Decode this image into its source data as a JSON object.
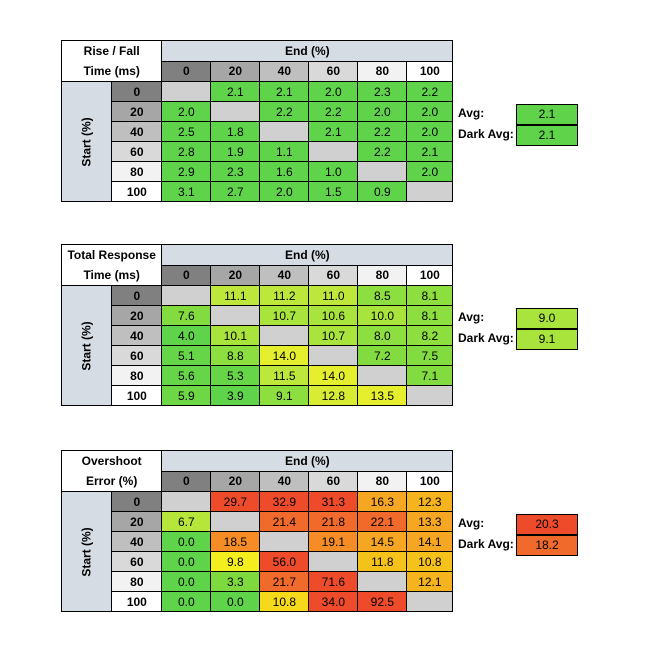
{
  "tables": [
    {
      "title": [
        "Rise / Fall",
        "Time (ms)"
      ],
      "end_label": "End (%)",
      "start_label": "Start (%)",
      "columns": [
        "0",
        "20",
        "40",
        "60",
        "80",
        "100"
      ],
      "rows": [
        {
          "start": "0",
          "values": [
            "",
            "2.1",
            "2.1",
            "2.0",
            "2.3",
            "2.2"
          ],
          "colors": [
            "#d0d0d0",
            "#5fd349",
            "#5fd349",
            "#5fd349",
            "#5fd349",
            "#5fd349"
          ]
        },
        {
          "start": "20",
          "values": [
            "2.0",
            "",
            "2.2",
            "2.2",
            "2.0",
            "2.0"
          ],
          "colors": [
            "#5fd349",
            "#d0d0d0",
            "#5fd349",
            "#5fd349",
            "#5fd349",
            "#5fd349"
          ]
        },
        {
          "start": "40",
          "values": [
            "2.5",
            "1.8",
            "",
            "2.1",
            "2.2",
            "2.0"
          ],
          "colors": [
            "#5fd349",
            "#5fd349",
            "#d0d0d0",
            "#5fd349",
            "#5fd349",
            "#5fd349"
          ]
        },
        {
          "start": "60",
          "values": [
            "2.8",
            "1.9",
            "1.1",
            "",
            "2.2",
            "2.1"
          ],
          "colors": [
            "#5fd349",
            "#5fd349",
            "#5fd349",
            "#d0d0d0",
            "#5fd349",
            "#5fd349"
          ]
        },
        {
          "start": "80",
          "values": [
            "2.9",
            "2.3",
            "1.6",
            "1.0",
            "",
            "2.0"
          ],
          "colors": [
            "#5fd349",
            "#5fd349",
            "#5fd349",
            "#5fd349",
            "#d0d0d0",
            "#5fd349"
          ]
        },
        {
          "start": "100",
          "values": [
            "3.1",
            "2.7",
            "2.0",
            "1.5",
            "0.9",
            ""
          ],
          "colors": [
            "#5fd349",
            "#5fd349",
            "#5fd349",
            "#5fd349",
            "#5fd349",
            "#d0d0d0"
          ]
        }
      ],
      "avg_label": "Avg:",
      "avg": "2.1",
      "avg_color": "#5fd349",
      "dark_avg_label": "Dark Avg:",
      "dark_avg": "2.1",
      "dark_avg_color": "#5fd349"
    },
    {
      "title": [
        "Total Response",
        "Time (ms)"
      ],
      "end_label": "End (%)",
      "start_label": "Start (%)",
      "columns": [
        "0",
        "20",
        "40",
        "60",
        "80",
        "100"
      ],
      "rows": [
        {
          "start": "0",
          "values": [
            "",
            "11.1",
            "11.2",
            "11.0",
            "8.5",
            "8.1"
          ],
          "colors": [
            "#d0d0d0",
            "#bde83b",
            "#bde83b",
            "#bde83b",
            "#8ddf3f",
            "#8ddf3f"
          ]
        },
        {
          "start": "20",
          "values": [
            "7.6",
            "",
            "10.7",
            "10.6",
            "10.0",
            "8.1"
          ],
          "colors": [
            "#82dc40",
            "#d0d0d0",
            "#a9e43c",
            "#a9e43c",
            "#a9e43c",
            "#8ddf3f"
          ]
        },
        {
          "start": "40",
          "values": [
            "4.0",
            "10.1",
            "",
            "10.7",
            "8.0",
            "8.2"
          ],
          "colors": [
            "#5fd349",
            "#a9e43c",
            "#d0d0d0",
            "#a9e43c",
            "#8ddf3f",
            "#8ddf3f"
          ]
        },
        {
          "start": "60",
          "values": [
            "5.1",
            "8.8",
            "14.0",
            "",
            "7.2",
            "7.5"
          ],
          "colors": [
            "#66d547",
            "#8ddf3f",
            "#e6ef2e",
            "#d0d0d0",
            "#82dc40",
            "#82dc40"
          ]
        },
        {
          "start": "80",
          "values": [
            "5.6",
            "5.3",
            "11.5",
            "14.0",
            "",
            "7.1"
          ],
          "colors": [
            "#66d547",
            "#66d547",
            "#bde83b",
            "#e6ef2e",
            "#d0d0d0",
            "#82dc40"
          ]
        },
        {
          "start": "100",
          "values": [
            "5.9",
            "3.9",
            "9.1",
            "12.8",
            "13.5",
            ""
          ],
          "colors": [
            "#6ed745",
            "#5fd349",
            "#8ddf3f",
            "#d7ec33",
            "#e6ef2e",
            "#d0d0d0"
          ]
        }
      ],
      "avg_label": "Avg:",
      "avg": "9.0",
      "avg_color": "#a9e43c",
      "dark_avg_label": "Dark Avg:",
      "dark_avg": "9.1",
      "dark_avg_color": "#a9e43c"
    },
    {
      "title": [
        "Overshoot",
        "Error (%)"
      ],
      "end_label": "End (%)",
      "start_label": "Start (%)",
      "columns": [
        "0",
        "20",
        "40",
        "60",
        "80",
        "100"
      ],
      "rows": [
        {
          "start": "0",
          "values": [
            "",
            "29.7",
            "32.9",
            "31.3",
            "16.3",
            "12.3"
          ],
          "colors": [
            "#d0d0d0",
            "#ee4b2b",
            "#ee4b2b",
            "#ee4b2b",
            "#f5a623",
            "#f5b31e"
          ]
        },
        {
          "start": "20",
          "values": [
            "6.7",
            "",
            "21.4",
            "21.8",
            "22.1",
            "13.3"
          ],
          "colors": [
            "#b6e63a",
            "#d0d0d0",
            "#f06a2c",
            "#f06a2c",
            "#f06a2c",
            "#f5a623"
          ]
        },
        {
          "start": "40",
          "values": [
            "0.0",
            "18.5",
            "",
            "19.1",
            "14.5",
            "14.1"
          ],
          "colors": [
            "#5fd349",
            "#f58c25",
            "#d0d0d0",
            "#f58c25",
            "#f5a623",
            "#f5a623"
          ]
        },
        {
          "start": "60",
          "values": [
            "0.0",
            "9.8",
            "56.0",
            "",
            "11.8",
            "10.8"
          ],
          "colors": [
            "#5fd349",
            "#f5ee1e",
            "#ee4b2b",
            "#d0d0d0",
            "#f5c21c",
            "#f5c21c"
          ]
        },
        {
          "start": "80",
          "values": [
            "0.0",
            "3.3",
            "21.7",
            "71.6",
            "",
            "12.1"
          ],
          "colors": [
            "#5fd349",
            "#7ed93f",
            "#f06a2c",
            "#ee4b2b",
            "#d0d0d0",
            "#f5b31e"
          ]
        },
        {
          "start": "100",
          "values": [
            "0.0",
            "0.0",
            "10.8",
            "34.0",
            "92.5",
            ""
          ],
          "colors": [
            "#5fd349",
            "#5fd349",
            "#f5d91a",
            "#ee4b2b",
            "#ee4b2b",
            "#d0d0d0"
          ]
        }
      ],
      "avg_label": "Avg:",
      "avg": "20.3",
      "avg_color": "#ee4b2b",
      "dark_avg_label": "Dark Avg:",
      "dark_avg": "18.2",
      "dark_avg_color": "#f06a2c"
    }
  ],
  "colhead_colors": [
    "#808080",
    "#a6a6a6",
    "#bfbfbf",
    "#d9d9d9",
    "#f2f2f2",
    "#ffffff"
  ],
  "rowhead_colors": [
    "#808080",
    "#a6a6a6",
    "#bfbfbf",
    "#d9d9d9",
    "#f2f2f2",
    "#ffffff"
  ]
}
